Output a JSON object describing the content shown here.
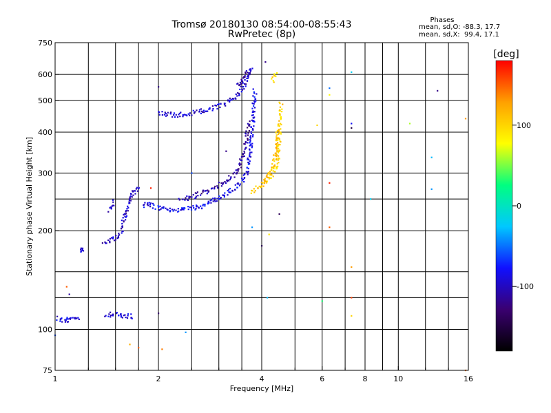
{
  "chart_data": {
    "type": "scatter",
    "title": "Tromsø 20180130 08:54:00-08:55:43",
    "subtitle": "RwPretec (8p)",
    "xlabel": "Frequency [MHz]",
    "ylabel": "Stationary phase Virtual Height [km]",
    "x_scale": "log",
    "y_scale": "log",
    "xlim": [
      1,
      16
    ],
    "ylim": [
      75,
      750
    ],
    "x_ticks": [
      1,
      2,
      4,
      6,
      8,
      10,
      16
    ],
    "x_tick_labels": [
      "1",
      "2",
      "4",
      "6",
      "8",
      "10",
      "16"
    ],
    "x_minor_gridlines": [
      1.25,
      1.5,
      1.75,
      2.5,
      3,
      3.5,
      5,
      7,
      9,
      12,
      14
    ],
    "y_ticks": [
      75,
      100,
      200,
      300,
      400,
      500,
      600,
      750
    ],
    "y_tick_labels": [
      "75",
      "100",
      "200",
      "300",
      "400",
      "500",
      "600",
      "750"
    ],
    "y_gridlines": [
      100,
      125,
      150,
      200,
      250,
      300,
      400,
      500,
      600
    ],
    "grid": true,
    "legend": {
      "title": "Phases",
      "lines": [
        "mean, sd,O: -88.3, 17.7",
        "mean, sd,X:  99.4, 17.1"
      ],
      "placement": "top-right"
    },
    "colorbar": {
      "label": "[deg]",
      "range": [
        -180,
        180
      ],
      "ticks": [
        -100,
        0,
        100
      ],
      "tick_labels": [
        "-100",
        "0",
        "100"
      ],
      "colormap": [
        "#000000",
        "#3a0070",
        "#1010ff",
        "#00c8ff",
        "#00ff80",
        "#ffff00",
        "#ffa000",
        "#ff0000"
      ]
    },
    "series": [
      {
        "mode": "O",
        "mean_phase": -88.3,
        "traces": [
          {
            "points": [
              [
                1.02,
                108
              ],
              [
                1.04,
                107
              ],
              [
                1.06,
                107
              ],
              [
                1.08,
                107
              ],
              [
                1.1,
                108
              ],
              [
                1.14,
                107
              ],
              [
                1.18,
                107
              ]
            ],
            "phase": -90
          },
          {
            "points": [
              [
                1.18,
                175
              ],
              [
                1.2,
                174
              ],
              [
                1.22,
                174
              ]
            ],
            "phase": -95
          },
          {
            "points": [
              [
                1.4,
                110
              ],
              [
                1.44,
                111
              ],
              [
                1.48,
                112
              ],
              [
                1.52,
                111
              ],
              [
                1.56,
                110
              ],
              [
                1.6,
                109
              ],
              [
                1.64,
                110
              ],
              [
                1.68,
                108
              ]
            ],
            "phase": -92
          },
          {
            "points": [
              [
                1.38,
                185
              ],
              [
                1.42,
                186
              ],
              [
                1.46,
                188
              ],
              [
                1.5,
                190
              ],
              [
                1.54,
                192
              ],
              [
                1.56,
                200
              ],
              [
                1.58,
                212
              ],
              [
                1.6,
                222
              ],
              [
                1.62,
                232
              ],
              [
                1.64,
                244
              ],
              [
                1.66,
                256
              ],
              [
                1.7,
                264
              ],
              [
                1.74,
                268
              ],
              [
                1.78,
                270
              ]
            ],
            "phase": -98
          },
          {
            "points": [
              [
                1.44,
                230
              ],
              [
                1.46,
                238
              ],
              [
                1.48,
                248
              ]
            ],
            "phase": -100
          },
          {
            "points": [
              [
                1.8,
                238
              ],
              [
                1.86,
                241
              ],
              [
                1.92,
                239
              ],
              [
                1.98,
                236
              ],
              [
                2.04,
                234
              ],
              [
                2.1,
                233
              ],
              [
                2.2,
                232
              ],
              [
                2.3,
                232
              ],
              [
                2.4,
                233
              ],
              [
                2.5,
                235
              ],
              [
                2.6,
                236
              ],
              [
                2.7,
                239
              ],
              [
                2.8,
                243
              ],
              [
                2.9,
                247
              ],
              [
                3.0,
                251
              ],
              [
                3.1,
                256
              ],
              [
                3.2,
                262
              ],
              [
                3.3,
                268
              ],
              [
                3.4,
                275
              ],
              [
                3.5,
                284
              ],
              [
                3.6,
                298
              ],
              [
                3.66,
                320
              ],
              [
                3.7,
                348
              ],
              [
                3.74,
                390
              ],
              [
                3.78,
                440
              ],
              [
                3.8,
                490
              ],
              [
                3.82,
                540
              ]
            ],
            "phase": -85
          },
          {
            "points": [
              [
                2.3,
                248
              ],
              [
                2.5,
                254
              ],
              [
                2.7,
                262
              ],
              [
                2.9,
                270
              ],
              [
                3.1,
                282
              ],
              [
                3.3,
                295
              ],
              [
                3.45,
                315
              ],
              [
                3.55,
                345
              ],
              [
                3.62,
                385
              ],
              [
                3.66,
                430
              ]
            ],
            "phase": -110
          },
          {
            "points": [
              [
                2.0,
                458
              ],
              [
                2.1,
                454
              ],
              [
                2.2,
                452
              ],
              [
                2.3,
                452
              ],
              [
                2.4,
                454
              ],
              [
                2.5,
                458
              ],
              [
                2.6,
                462
              ],
              [
                2.7,
                466
              ],
              [
                2.8,
                470
              ],
              [
                2.9,
                475
              ],
              [
                3.0,
                481
              ],
              [
                3.1,
                488
              ],
              [
                3.2,
                496
              ],
              [
                3.3,
                506
              ],
              [
                3.4,
                520
              ],
              [
                3.5,
                540
              ],
              [
                3.6,
                568
              ],
              [
                3.65,
                590
              ],
              [
                3.7,
                612
              ],
              [
                3.74,
                630
              ]
            ],
            "phase": -95
          },
          {
            "points": [
              [
                3.4,
                555
              ],
              [
                3.5,
                575
              ],
              [
                3.58,
                600
              ],
              [
                3.64,
                620
              ]
            ],
            "phase": -115
          }
        ]
      },
      {
        "mode": "X",
        "mean_phase": 99.4,
        "traces": [
          {
            "points": [
              [
                3.75,
                262
              ],
              [
                3.82,
                268
              ],
              [
                3.9,
                272
              ],
              [
                3.98,
                276
              ],
              [
                4.06,
                280
              ],
              [
                4.14,
                285
              ],
              [
                4.22,
                290
              ],
              [
                4.3,
                296
              ],
              [
                4.36,
                304
              ],
              [
                4.42,
                318
              ],
              [
                4.46,
                340
              ],
              [
                4.48,
                365
              ],
              [
                4.5,
                395
              ],
              [
                4.52,
                425
              ],
              [
                4.54,
                460
              ],
              [
                4.55,
                490
              ]
            ],
            "phase": 100
          },
          {
            "points": [
              [
                4.0,
                280
              ],
              [
                4.1,
                288
              ],
              [
                4.2,
                296
              ],
              [
                4.28,
                305
              ],
              [
                4.34,
                320
              ],
              [
                4.38,
                345
              ],
              [
                4.42,
                375
              ],
              [
                4.45,
                410
              ]
            ],
            "phase": 110
          },
          {
            "points": [
              [
                4.3,
                570
              ],
              [
                4.35,
                590
              ],
              [
                4.4,
                610
              ]
            ],
            "phase": 95
          }
        ]
      },
      {
        "mode": "noise",
        "points": [
          {
            "x": 1.0,
            "y": 96,
            "phase": -60
          },
          {
            "x": 1.08,
            "y": 135,
            "phase": 150
          },
          {
            "x": 1.1,
            "y": 128,
            "phase": -110
          },
          {
            "x": 1.65,
            "y": 90,
            "phase": 120
          },
          {
            "x": 1.75,
            "y": 88,
            "phase": 150
          },
          {
            "x": 2.05,
            "y": 87,
            "phase": 140
          },
          {
            "x": 2.0,
            "y": 112,
            "phase": -130
          },
          {
            "x": 2.4,
            "y": 98,
            "phase": -40
          },
          {
            "x": 1.9,
            "y": 270,
            "phase": 170
          },
          {
            "x": 2.0,
            "y": 550,
            "phase": -120
          },
          {
            "x": 2.5,
            "y": 300,
            "phase": -60
          },
          {
            "x": 3.15,
            "y": 350,
            "phase": -120
          },
          {
            "x": 4.0,
            "y": 180,
            "phase": -140
          },
          {
            "x": 4.15,
            "y": 125,
            "phase": -30
          },
          {
            "x": 4.2,
            "y": 195,
            "phase": 90
          },
          {
            "x": 4.1,
            "y": 655,
            "phase": -120
          },
          {
            "x": 4.5,
            "y": 225,
            "phase": -140
          },
          {
            "x": 3.75,
            "y": 205,
            "phase": -40
          },
          {
            "x": 5.8,
            "y": 420,
            "phase": 100
          },
          {
            "x": 6.0,
            "y": 122,
            "phase": 30
          },
          {
            "x": 6.3,
            "y": 545,
            "phase": -50
          },
          {
            "x": 6.3,
            "y": 520,
            "phase": 80
          },
          {
            "x": 6.3,
            "y": 280,
            "phase": 170
          },
          {
            "x": 6.3,
            "y": 205,
            "phase": 150
          },
          {
            "x": 7.3,
            "y": 610,
            "phase": -20
          },
          {
            "x": 7.3,
            "y": 425,
            "phase": -80
          },
          {
            "x": 7.3,
            "y": 412,
            "phase": -150
          },
          {
            "x": 7.3,
            "y": 155,
            "phase": 130
          },
          {
            "x": 7.3,
            "y": 125,
            "phase": 160
          },
          {
            "x": 7.3,
            "y": 110,
            "phase": 100
          },
          {
            "x": 8.3,
            "y": 250,
            "phase": -20
          },
          {
            "x": 10.8,
            "y": 425,
            "phase": 60
          },
          {
            "x": 12.5,
            "y": 335,
            "phase": -30
          },
          {
            "x": 12.5,
            "y": 268,
            "phase": -40
          },
          {
            "x": 13.0,
            "y": 535,
            "phase": -120
          },
          {
            "x": 15.7,
            "y": 440,
            "phase": 130
          },
          {
            "x": 15.7,
            "y": 75,
            "phase": 140
          }
        ]
      }
    ]
  }
}
